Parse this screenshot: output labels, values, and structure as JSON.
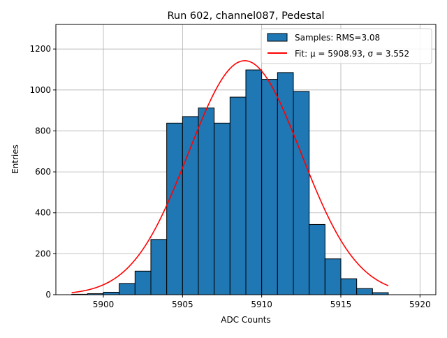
{
  "chart_data": {
    "type": "histogram",
    "title": "Run 602, channel087, Pedestal",
    "xlabel": "ADC Counts",
    "ylabel": "Entries",
    "xlim": [
      5897,
      5921
    ],
    "ylim": [
      0,
      1320
    ],
    "xticks": [
      5900,
      5905,
      5910,
      5915,
      5920
    ],
    "yticks": [
      0,
      200,
      400,
      600,
      800,
      1000,
      1200
    ],
    "grid": true,
    "bin_edges": [
      5898,
      5899,
      5900,
      5901,
      5902,
      5903,
      5904,
      5905,
      5906,
      5907,
      5908,
      5909,
      5910,
      5911,
      5912,
      5913,
      5914,
      5915,
      5916,
      5917,
      5918
    ],
    "bin_counts": [
      2,
      5,
      12,
      55,
      115,
      270,
      838,
      870,
      912,
      838,
      965,
      1098,
      1052,
      1085,
      993,
      343,
      175,
      78,
      30,
      10
    ],
    "fit": {
      "mu": 5908.93,
      "sigma": 3.552,
      "amplitude": 1143,
      "x_range": [
        5898,
        5918
      ]
    },
    "legend": {
      "position": "top-right",
      "entries": [
        {
          "kind": "bar",
          "label": "Samples: RMS=3.08",
          "color": "#1f77b4"
        },
        {
          "kind": "line",
          "label_prefix": "Fit: ",
          "mu_text": "μ = 5908.93",
          "sigma_text": "σ = 3.552",
          "color": "#ff0000"
        }
      ]
    },
    "colors": {
      "bars": "#1f77b4",
      "bar_edge": "#000000",
      "fit": "#ff0000",
      "grid": "#b0b0b0"
    }
  }
}
